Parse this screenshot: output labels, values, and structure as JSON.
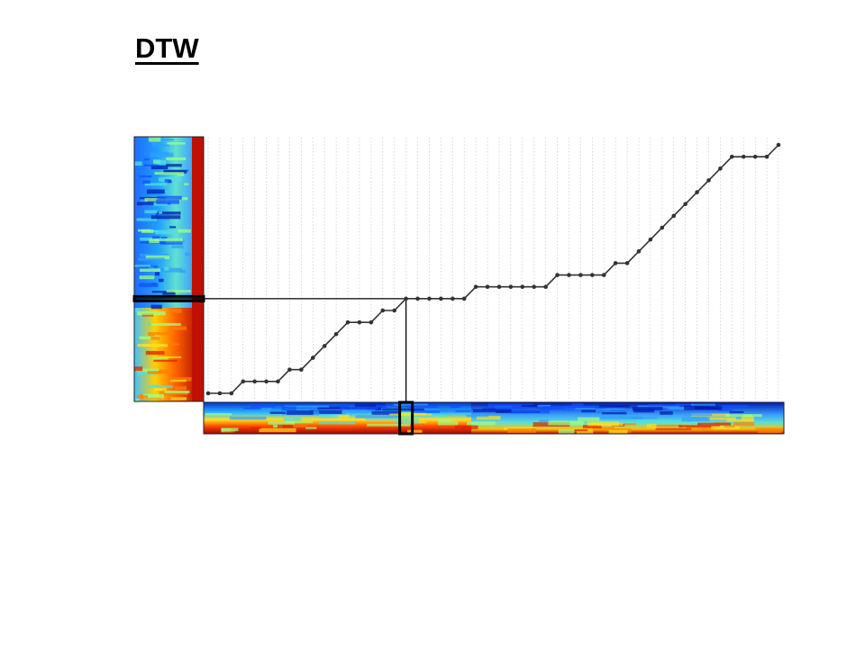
{
  "slide": {
    "title": "DTW"
  },
  "diagram": {
    "grid": {
      "columns": 50,
      "rows": 22
    },
    "warping_path": [
      [
        0,
        0
      ],
      [
        1,
        0
      ],
      [
        2,
        0
      ],
      [
        3,
        1
      ],
      [
        4,
        1
      ],
      [
        5,
        1
      ],
      [
        6,
        1
      ],
      [
        7,
        2
      ],
      [
        8,
        2
      ],
      [
        9,
        3
      ],
      [
        10,
        4
      ],
      [
        11,
        5
      ],
      [
        12,
        6
      ],
      [
        13,
        6
      ],
      [
        14,
        6
      ],
      [
        15,
        7
      ],
      [
        16,
        7
      ],
      [
        17,
        8
      ],
      [
        18,
        8
      ],
      [
        19,
        8
      ],
      [
        20,
        8
      ],
      [
        21,
        8
      ],
      [
        22,
        8
      ],
      [
        23,
        9
      ],
      [
        24,
        9
      ],
      [
        25,
        9
      ],
      [
        26,
        9
      ],
      [
        27,
        9
      ],
      [
        28,
        9
      ],
      [
        29,
        9
      ],
      [
        30,
        10
      ],
      [
        31,
        10
      ],
      [
        32,
        10
      ],
      [
        33,
        10
      ],
      [
        34,
        10
      ],
      [
        35,
        11
      ],
      [
        36,
        11
      ],
      [
        37,
        12
      ],
      [
        38,
        13
      ],
      [
        39,
        14
      ],
      [
        40,
        15
      ],
      [
        41,
        16
      ],
      [
        42,
        17
      ],
      [
        43,
        18
      ],
      [
        44,
        19
      ],
      [
        45,
        20
      ],
      [
        46,
        20
      ],
      [
        47,
        20
      ],
      [
        48,
        20
      ],
      [
        49,
        21
      ]
    ],
    "highlight_index": {
      "column": 17,
      "row": 8
    },
    "colors": {
      "path": "#333333",
      "grid": "#bdbdbd",
      "highlight": "#000000"
    }
  }
}
